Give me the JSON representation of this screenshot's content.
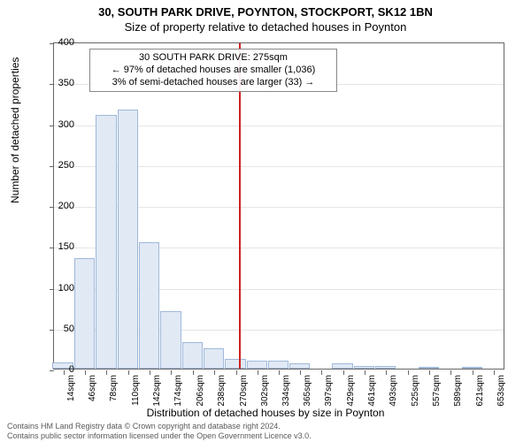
{
  "title": {
    "line1": "30, SOUTH PARK DRIVE, POYNTON, STOCKPORT, SK12 1BN",
    "line2": "Size of property relative to detached houses in Poynton"
  },
  "axes": {
    "ylabel": "Number of detached properties",
    "xlabel": "Distribution of detached houses by size in Poynton",
    "ylim": [
      0,
      400
    ],
    "ytick_step": 50,
    "xlim": [
      0,
      670
    ],
    "ylabel_fontsize": 12,
    "xlabel_fontsize": 12,
    "tick_fontsize": 11
  },
  "histogram": {
    "type": "histogram",
    "bin_width": 32,
    "bar_color": "#e1e9f5",
    "bar_border": "#9fb8d9",
    "background_color": "#ffffff",
    "grid_color": "#e5e5e5",
    "bins": [
      {
        "label": "14sqm",
        "x_center": 14,
        "count": 8
      },
      {
        "label": "46sqm",
        "x_center": 46,
        "count": 135
      },
      {
        "label": "78sqm",
        "x_center": 78,
        "count": 310
      },
      {
        "label": "110sqm",
        "x_center": 110,
        "count": 317
      },
      {
        "label": "142sqm",
        "x_center": 142,
        "count": 155
      },
      {
        "label": "174sqm",
        "x_center": 174,
        "count": 70
      },
      {
        "label": "206sqm",
        "x_center": 206,
        "count": 32
      },
      {
        "label": "238sqm",
        "x_center": 238,
        "count": 25
      },
      {
        "label": "270sqm",
        "x_center": 270,
        "count": 12
      },
      {
        "label": "302sqm",
        "x_center": 302,
        "count": 10
      },
      {
        "label": "334sqm",
        "x_center": 334,
        "count": 10
      },
      {
        "label": "365sqm",
        "x_center": 365,
        "count": 7
      },
      {
        "label": "397sqm",
        "x_center": 397,
        "count": 0
      },
      {
        "label": "429sqm",
        "x_center": 429,
        "count": 6
      },
      {
        "label": "461sqm",
        "x_center": 461,
        "count": 3
      },
      {
        "label": "493sqm",
        "x_center": 493,
        "count": 3
      },
      {
        "label": "525sqm",
        "x_center": 525,
        "count": 0
      },
      {
        "label": "557sqm",
        "x_center": 557,
        "count": 2
      },
      {
        "label": "589sqm",
        "x_center": 589,
        "count": 0
      },
      {
        "label": "621sqm",
        "x_center": 621,
        "count": 2
      },
      {
        "label": "653sqm",
        "x_center": 653,
        "count": 0
      }
    ]
  },
  "reference_line": {
    "x_value": 275,
    "color": "#d02020"
  },
  "annotation": {
    "line1": "30 SOUTH PARK DRIVE: 275sqm",
    "line2": "← 97% of detached houses are smaller (1,036)",
    "line3": "3% of semi-detached houses are larger (33) →",
    "border_color": "#888888",
    "background_color": "#ffffff"
  },
  "footer": {
    "line1": "Contains HM Land Registry data © Crown copyright and database right 2024.",
    "line2": "Contains public sector information licensed under the Open Government Licence v3.0."
  }
}
